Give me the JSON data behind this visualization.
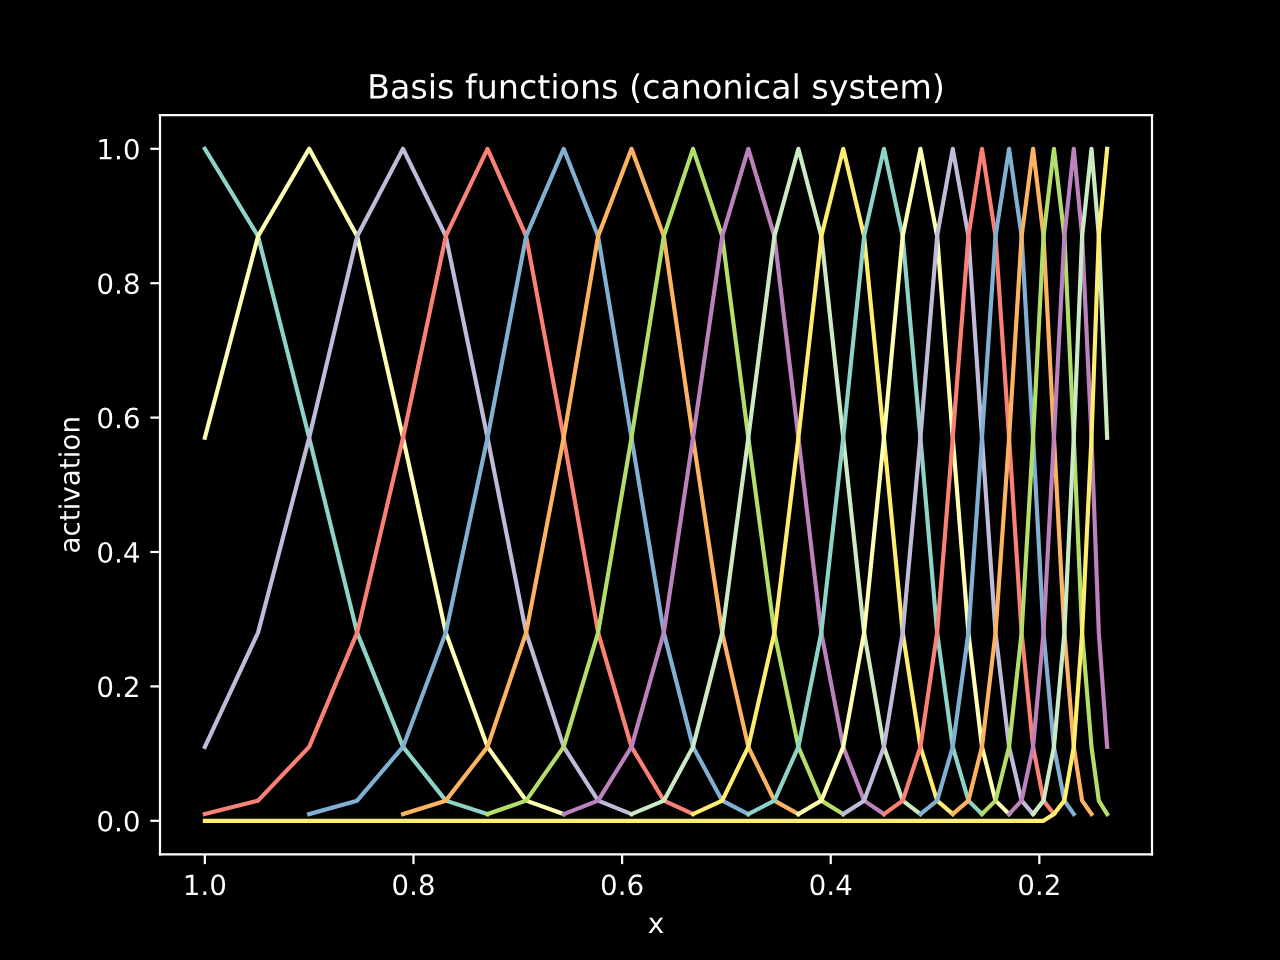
{
  "chart_data": {
    "type": "line",
    "title": "Basis functions (canonical system)",
    "xlabel": "x",
    "ylabel": "activation",
    "x": [
      1.0,
      0.949,
      0.9,
      0.854,
      0.81,
      0.769,
      0.729,
      0.692,
      0.656,
      0.623,
      0.591,
      0.56,
      0.532,
      0.504,
      0.479,
      0.454,
      0.431,
      0.409,
      0.388,
      0.368,
      0.349,
      0.331,
      0.314,
      0.298,
      0.283,
      0.268,
      0.255,
      0.242,
      0.229,
      0.217,
      0.206,
      0.196,
      0.186,
      0.176,
      0.167,
      0.159,
      0.15,
      0.143,
      0.135
    ],
    "xlim": [
      1.043,
      0.092
    ],
    "xticks": [
      {
        "value": 1.0,
        "label": "1.0"
      },
      0.8,
      0.6,
      0.4,
      0.2
    ],
    "ylim": [
      -0.05,
      1.05
    ],
    "yticks": [
      {
        "value": 0,
        "label": "0.0"
      },
      0.2,
      0.4,
      0.6,
      0.8,
      {
        "value": 1,
        "label": "1.0"
      }
    ],
    "grid": false,
    "marker": "none",
    "line_style": "solid",
    "series": [
      {
        "color": "#8dd3c7",
        "values": [
          1,
          0.87,
          0.57,
          0.28,
          0.11,
          0.03,
          0.01,
          null,
          null,
          null,
          null,
          null,
          null,
          null,
          null,
          null,
          null,
          null,
          null,
          null,
          null,
          null,
          null,
          null,
          null,
          null,
          null,
          null,
          null,
          null,
          null,
          null,
          null,
          null,
          null,
          null,
          null,
          null,
          null
        ]
      },
      {
        "color": "#feffb3",
        "values": [
          0.57,
          0.87,
          1,
          0.87,
          0.57,
          0.28,
          0.11,
          0.03,
          0.01,
          null,
          null,
          null,
          null,
          null,
          null,
          null,
          null,
          null,
          null,
          null,
          null,
          null,
          null,
          null,
          null,
          null,
          null,
          null,
          null,
          null,
          null,
          null,
          null,
          null,
          null,
          null,
          null,
          null,
          null
        ]
      },
      {
        "color": "#bfbbd9",
        "values": [
          0.11,
          0.28,
          0.57,
          0.87,
          1,
          0.87,
          0.57,
          0.28,
          0.11,
          0.03,
          0.01,
          null,
          null,
          null,
          null,
          null,
          null,
          null,
          null,
          null,
          null,
          null,
          null,
          null,
          null,
          null,
          null,
          null,
          null,
          null,
          null,
          null,
          null,
          null,
          null,
          null,
          null,
          null,
          null
        ]
      },
      {
        "color": "#fa8174",
        "values": [
          0.01,
          0.03,
          0.11,
          0.28,
          0.57,
          0.87,
          1,
          0.87,
          0.57,
          0.28,
          0.11,
          0.03,
          0.01,
          null,
          null,
          null,
          null,
          null,
          null,
          null,
          null,
          null,
          null,
          null,
          null,
          null,
          null,
          null,
          null,
          null,
          null,
          null,
          null,
          null,
          null,
          null,
          null,
          null,
          null
        ]
      },
      {
        "color": "#81b1d2",
        "values": [
          null,
          null,
          0.01,
          0.03,
          0.11,
          0.28,
          0.57,
          0.87,
          1,
          0.87,
          0.57,
          0.28,
          0.11,
          0.03,
          0.01,
          null,
          null,
          null,
          null,
          null,
          null,
          null,
          null,
          null,
          null,
          null,
          null,
          null,
          null,
          null,
          null,
          null,
          null,
          null,
          null,
          null,
          null,
          null,
          null
        ]
      },
      {
        "color": "#fdb462",
        "values": [
          null,
          null,
          null,
          null,
          0.01,
          0.03,
          0.11,
          0.28,
          0.57,
          0.87,
          1,
          0.87,
          0.57,
          0.28,
          0.11,
          0.03,
          0.01,
          null,
          null,
          null,
          null,
          null,
          null,
          null,
          null,
          null,
          null,
          null,
          null,
          null,
          null,
          null,
          null,
          null,
          null,
          null,
          null,
          null,
          null
        ]
      },
      {
        "color": "#b3de69",
        "values": [
          null,
          null,
          null,
          null,
          null,
          null,
          0.01,
          0.03,
          0.11,
          0.28,
          0.57,
          0.87,
          1,
          0.87,
          0.57,
          0.28,
          0.11,
          0.03,
          0.01,
          null,
          null,
          null,
          null,
          null,
          null,
          null,
          null,
          null,
          null,
          null,
          null,
          null,
          null,
          null,
          null,
          null,
          null,
          null,
          null
        ]
      },
      {
        "color": "#bc82bd",
        "values": [
          null,
          null,
          null,
          null,
          null,
          null,
          null,
          null,
          0.01,
          0.03,
          0.11,
          0.28,
          0.57,
          0.87,
          1,
          0.87,
          0.57,
          0.28,
          0.11,
          0.03,
          0.01,
          null,
          null,
          null,
          null,
          null,
          null,
          null,
          null,
          null,
          null,
          null,
          null,
          null,
          null,
          null,
          null,
          null,
          null
        ]
      },
      {
        "color": "#ccebc4",
        "values": [
          null,
          null,
          null,
          null,
          null,
          null,
          null,
          null,
          null,
          null,
          0.01,
          0.03,
          0.11,
          0.28,
          0.57,
          0.87,
          1,
          0.87,
          0.57,
          0.28,
          0.11,
          0.03,
          0.01,
          null,
          null,
          null,
          null,
          null,
          null,
          null,
          null,
          null,
          null,
          null,
          null,
          null,
          null,
          null,
          null
        ]
      },
      {
        "color": "#ffed6f",
        "values": [
          null,
          null,
          null,
          null,
          null,
          null,
          null,
          null,
          null,
          null,
          null,
          null,
          0.01,
          0.03,
          0.11,
          0.28,
          0.57,
          0.87,
          1,
          0.87,
          0.57,
          0.28,
          0.11,
          0.03,
          0.01,
          null,
          null,
          null,
          null,
          null,
          null,
          null,
          null,
          null,
          null,
          null,
          null,
          null,
          null
        ]
      },
      {
        "color": "#8dd3c7",
        "values": [
          null,
          null,
          null,
          null,
          null,
          null,
          null,
          null,
          null,
          null,
          null,
          null,
          null,
          null,
          0.01,
          0.03,
          0.11,
          0.28,
          0.57,
          0.87,
          1,
          0.87,
          0.57,
          0.28,
          0.11,
          0.03,
          0.01,
          null,
          null,
          null,
          null,
          null,
          null,
          null,
          null,
          null,
          null,
          null,
          null
        ]
      },
      {
        "color": "#feffb3",
        "values": [
          null,
          null,
          null,
          null,
          null,
          null,
          null,
          null,
          null,
          null,
          null,
          null,
          null,
          null,
          null,
          null,
          0.01,
          0.03,
          0.11,
          0.28,
          0.57,
          0.87,
          1,
          0.87,
          0.57,
          0.28,
          0.11,
          0.03,
          0.01,
          null,
          null,
          null,
          null,
          null,
          null,
          null,
          null,
          null,
          null
        ]
      },
      {
        "color": "#bfbbd9",
        "values": [
          null,
          null,
          null,
          null,
          null,
          null,
          null,
          null,
          null,
          null,
          null,
          null,
          null,
          null,
          null,
          null,
          null,
          null,
          0.01,
          0.03,
          0.11,
          0.28,
          0.57,
          0.87,
          1,
          0.87,
          0.57,
          0.28,
          0.11,
          0.03,
          0.01,
          null,
          null,
          null,
          null,
          null,
          null,
          null,
          null
        ]
      },
      {
        "color": "#fa8174",
        "values": [
          null,
          null,
          null,
          null,
          null,
          null,
          null,
          null,
          null,
          null,
          null,
          null,
          null,
          null,
          null,
          null,
          null,
          null,
          null,
          null,
          0.01,
          0.03,
          0.11,
          0.28,
          0.57,
          0.87,
          1,
          0.87,
          0.57,
          0.28,
          0.11,
          0.03,
          0.01,
          null,
          null,
          null,
          null,
          null,
          null
        ]
      },
      {
        "color": "#81b1d2",
        "values": [
          null,
          null,
          null,
          null,
          null,
          null,
          null,
          null,
          null,
          null,
          null,
          null,
          null,
          null,
          null,
          null,
          null,
          null,
          null,
          null,
          null,
          null,
          0.01,
          0.03,
          0.11,
          0.28,
          0.57,
          0.87,
          1,
          0.87,
          0.57,
          0.28,
          0.11,
          0.03,
          0.01,
          null,
          null,
          null,
          null
        ]
      },
      {
        "color": "#fdb462",
        "values": [
          null,
          null,
          null,
          null,
          null,
          null,
          null,
          null,
          null,
          null,
          null,
          null,
          null,
          null,
          null,
          null,
          null,
          null,
          null,
          null,
          null,
          null,
          null,
          null,
          0.01,
          0.03,
          0.11,
          0.28,
          0.57,
          0.87,
          1,
          0.87,
          0.57,
          0.28,
          0.11,
          0.03,
          0.01,
          null,
          null
        ]
      },
      {
        "color": "#b3de69",
        "values": [
          null,
          null,
          null,
          null,
          null,
          null,
          null,
          null,
          null,
          null,
          null,
          null,
          null,
          null,
          null,
          null,
          null,
          null,
          null,
          null,
          null,
          null,
          null,
          null,
          null,
          null,
          0.01,
          0.03,
          0.11,
          0.28,
          0.57,
          0.87,
          1,
          0.87,
          0.57,
          0.28,
          0.11,
          0.03,
          0.01
        ]
      },
      {
        "color": "#bc82bd",
        "values": [
          null,
          null,
          null,
          null,
          null,
          null,
          null,
          null,
          null,
          null,
          null,
          null,
          null,
          null,
          null,
          null,
          null,
          null,
          null,
          null,
          null,
          null,
          null,
          null,
          null,
          null,
          null,
          null,
          0.01,
          0.03,
          0.11,
          0.28,
          0.57,
          0.87,
          1,
          0.87,
          0.57,
          0.28,
          0.11
        ]
      },
      {
        "color": "#ccebc4",
        "values": [
          null,
          null,
          null,
          null,
          null,
          null,
          null,
          null,
          null,
          null,
          null,
          null,
          null,
          null,
          null,
          null,
          null,
          null,
          null,
          null,
          null,
          null,
          null,
          null,
          null,
          null,
          null,
          null,
          null,
          null,
          0.01,
          0.03,
          0.11,
          0.28,
          0.57,
          0.87,
          1,
          0.87,
          0.57
        ]
      },
      {
        "color": "#ffed6f",
        "values": [
          0,
          0,
          0,
          0,
          0,
          0,
          0,
          0,
          0,
          0,
          0,
          0,
          0,
          0,
          0,
          0,
          0,
          0,
          0,
          0,
          0,
          0,
          0,
          0,
          0,
          0,
          0,
          0,
          0,
          0,
          0,
          0,
          0.01,
          0.03,
          0.11,
          0.28,
          0.57,
          0.87,
          1
        ]
      }
    ]
  }
}
